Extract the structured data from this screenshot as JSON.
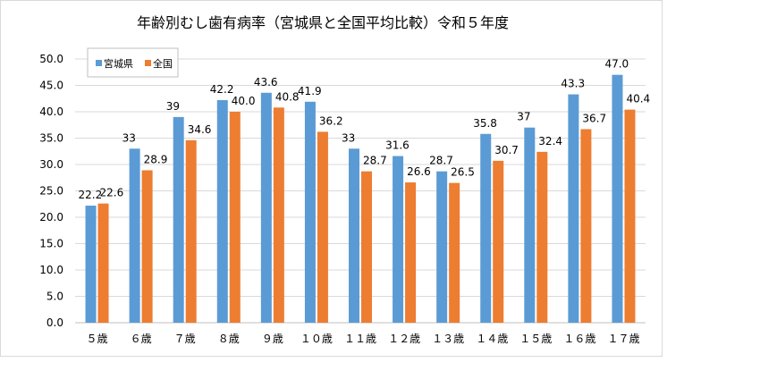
{
  "chart_data": {
    "type": "bar",
    "title": "年齢別むし歯有病率（宮城県と全国平均比較）令和５年度",
    "categories": [
      "５歳",
      "６歳",
      "７歳",
      "８歳",
      "９歳",
      "１０歳",
      "１１歳",
      "１２歳",
      "１３歳",
      "１４歳",
      "１５歳",
      "１６歳",
      "１７歳"
    ],
    "series": [
      {
        "name": "宮城県",
        "color": "#5b9bd5",
        "values": [
          22.2,
          33,
          39,
          42.2,
          43.6,
          41.9,
          33,
          31.6,
          28.7,
          35.8,
          37,
          43.3,
          47.0
        ],
        "labels": [
          "22.2",
          "33",
          "39",
          "42.2",
          "43.6",
          "41.9",
          "33",
          "31.6",
          "28.7",
          "35.8",
          "37",
          "43.3",
          "47.0"
        ]
      },
      {
        "name": "全国",
        "color": "#ed7d31",
        "values": [
          22.6,
          28.9,
          34.6,
          40.0,
          40.8,
          36.2,
          28.7,
          26.6,
          26.5,
          30.7,
          32.4,
          36.7,
          40.4
        ],
        "labels": [
          "22.6",
          "28.9",
          "34.6",
          "40.0",
          "40.8",
          "36.2",
          "28.7",
          "26.6",
          "26.5",
          "30.7",
          "32.4",
          "36.7",
          "40.4"
        ]
      }
    ],
    "ylim": [
      0,
      50
    ],
    "yticks": [
      "0.0",
      "5.0",
      "10.0",
      "15.0",
      "20.0",
      "25.0",
      "30.0",
      "35.0",
      "40.0",
      "45.0",
      "50.0"
    ],
    "xlabel": "",
    "ylabel": "",
    "legend_position": "top-left",
    "grid": true
  }
}
